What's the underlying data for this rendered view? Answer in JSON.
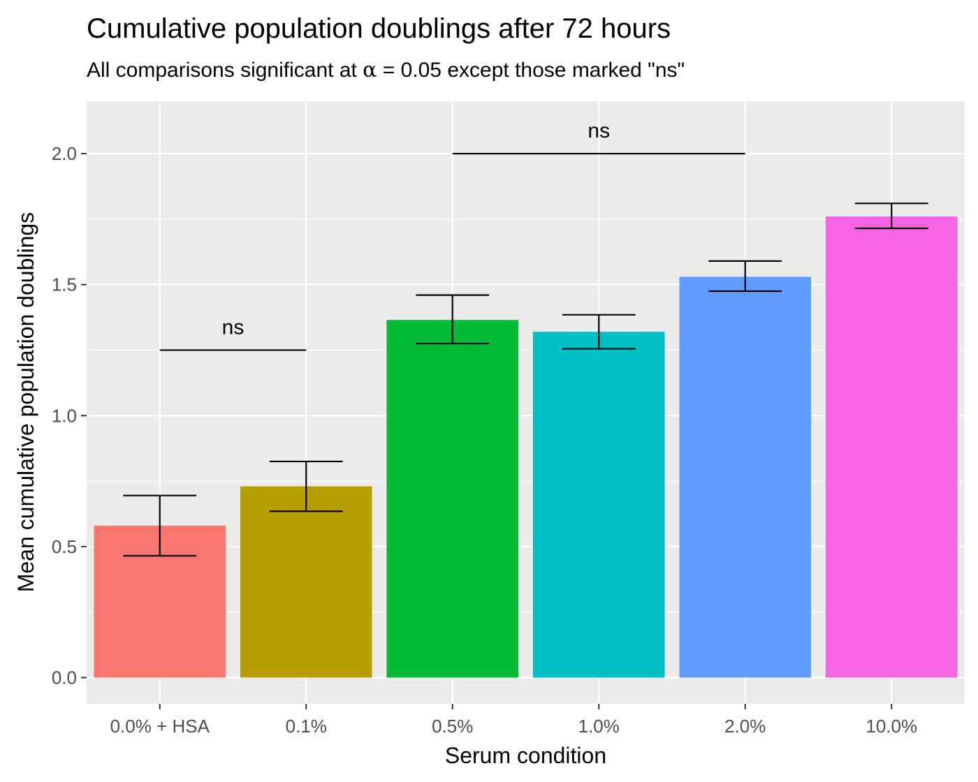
{
  "chart_data": {
    "type": "bar",
    "title": "Cumulative population doublings after 72 hours",
    "subtitle": {
      "prefix": "All comparisons significant at ",
      "symbol": "α",
      "operator": " = ",
      "value": "0.05",
      "suffix": " except those marked \"ns\""
    },
    "xlabel": "Serum condition",
    "ylabel": "Mean cumulative population doublings",
    "categories": [
      "0.0% + HSA",
      "0.1%",
      "0.5%",
      "1.0%",
      "2.0%",
      "10.0%"
    ],
    "values": [
      0.58,
      0.73,
      1.365,
      1.32,
      1.53,
      1.76
    ],
    "error_low": [
      0.465,
      0.635,
      1.275,
      1.255,
      1.475,
      1.715
    ],
    "error_high": [
      0.695,
      0.825,
      1.46,
      1.385,
      1.59,
      1.81
    ],
    "colors": [
      "#F8766D",
      "#B79F00",
      "#00BA38",
      "#00BFC4",
      "#619CFF",
      "#F564E3"
    ],
    "ylim": [
      -0.1,
      2.2
    ],
    "yticks": [
      0.0,
      0.5,
      1.0,
      1.5,
      2.0
    ],
    "ytick_labels": [
      "0.0",
      "0.5",
      "1.0",
      "1.5",
      "2.0"
    ],
    "grid": true,
    "background": "#EBEBEB",
    "legend": "none",
    "annotations": [
      {
        "label": "ns",
        "from": "0.0% + HSA",
        "to": "0.1%",
        "y": 1.25
      },
      {
        "label": "ns",
        "from": "0.5%",
        "to": "2.0%",
        "y": 2.0
      }
    ]
  }
}
